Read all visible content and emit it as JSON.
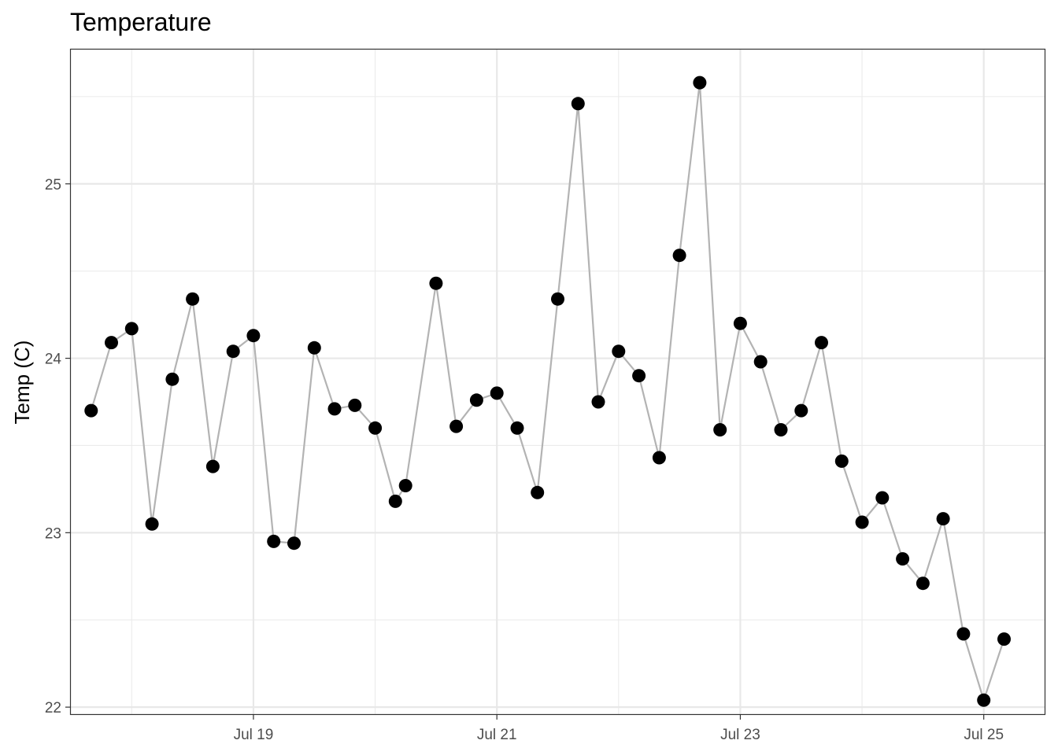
{
  "chart_data": {
    "type": "line",
    "title": "Temperature",
    "xlabel": "",
    "ylabel": "Temp (C)",
    "xlim": [
      "2021-07-17 12:00",
      "2021-07-25 12:00"
    ],
    "ylim": [
      21.96,
      25.77
    ],
    "x_ticks": [
      {
        "x": "2021-07-19",
        "label": "Jul 19"
      },
      {
        "x": "2021-07-21",
        "label": "Jul 21"
      },
      {
        "x": "2021-07-23",
        "label": "Jul 23"
      },
      {
        "x": "2021-07-25",
        "label": "Jul 25"
      }
    ],
    "y_ticks": [
      22,
      23,
      24,
      25
    ],
    "grid": true,
    "line_color": "#b3b3b3",
    "point_color": "#000000",
    "series": [
      {
        "x": [
          "2021-07-17 16:00",
          "2021-07-17 20:00",
          "2021-07-18 00:00",
          "2021-07-18 04:00",
          "2021-07-18 08:00",
          "2021-07-18 12:00",
          "2021-07-18 16:00",
          "2021-07-18 20:00",
          "2021-07-19 00:00",
          "2021-07-19 04:00",
          "2021-07-19 08:00",
          "2021-07-19 12:00",
          "2021-07-19 16:00",
          "2021-07-19 20:00",
          "2021-07-20 00:00",
          "2021-07-20 04:00",
          "2021-07-20 06:00",
          "2021-07-20 12:00",
          "2021-07-20 16:00",
          "2021-07-20 20:00",
          "2021-07-21 00:00",
          "2021-07-21 04:00",
          "2021-07-21 08:00",
          "2021-07-21 12:00",
          "2021-07-21 16:00",
          "2021-07-21 20:00",
          "2021-07-22 00:00",
          "2021-07-22 04:00",
          "2021-07-22 08:00",
          "2021-07-22 12:00",
          "2021-07-22 16:00",
          "2021-07-22 20:00",
          "2021-07-23 00:00",
          "2021-07-23 04:00",
          "2021-07-23 08:00",
          "2021-07-23 12:00",
          "2021-07-23 16:00",
          "2021-07-23 20:00",
          "2021-07-24 00:00",
          "2021-07-24 04:00",
          "2021-07-24 08:00",
          "2021-07-24 12:00",
          "2021-07-24 16:00",
          "2021-07-24 20:00",
          "2021-07-25 00:00",
          "2021-07-25 04:00"
        ],
        "y": [
          23.7,
          24.09,
          24.17,
          23.05,
          23.88,
          24.34,
          23.38,
          24.04,
          24.13,
          22.95,
          22.94,
          24.06,
          23.71,
          23.73,
          23.6,
          23.18,
          23.27,
          24.43,
          23.61,
          23.76,
          23.8,
          23.6,
          23.23,
          24.34,
          25.46,
          23.75,
          24.04,
          23.9,
          23.43,
          24.59,
          25.58,
          23.59,
          24.2,
          23.98,
          23.59,
          23.7,
          24.09,
          23.41,
          23.06,
          23.2,
          22.85,
          22.71,
          23.08,
          22.42,
          22.04,
          22.39
        ]
      }
    ]
  }
}
